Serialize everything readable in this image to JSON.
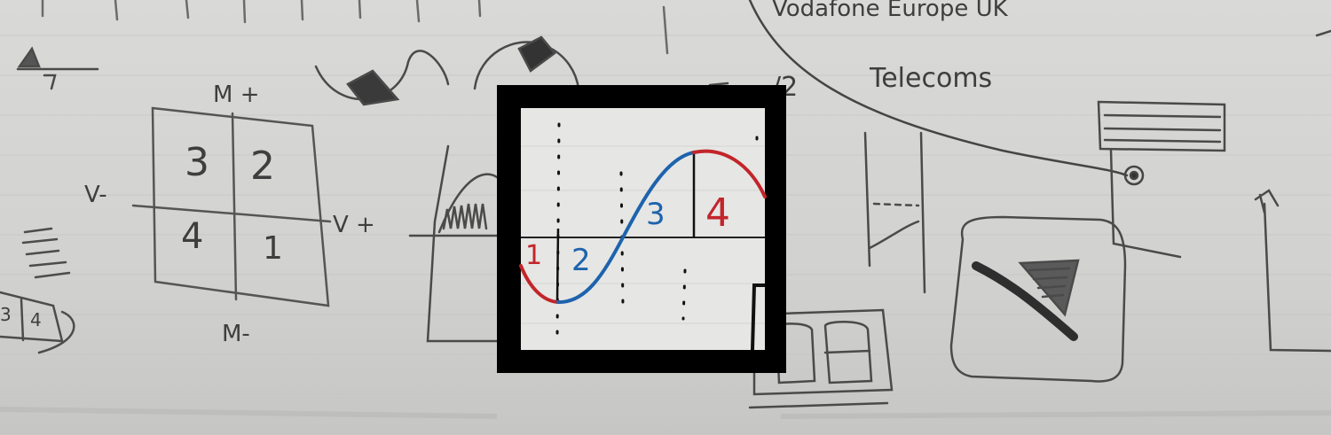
{
  "sketch": {
    "quadrant_top": "M +",
    "quadrant_bottom": "M-",
    "quadrant_left": "V-",
    "quadrant_right": "V +",
    "quadrant_cells": [
      "3",
      "2",
      "4",
      "1"
    ],
    "top_right_text": "Vodafone Europe UK",
    "telecom_text": "Telecoms",
    "fraction_text": "/2"
  },
  "inset": {
    "numbers": [
      "1",
      "2",
      "3",
      "4"
    ],
    "colors": {
      "red": "#c2252a",
      "blue": "#1d63ad",
      "frame": "#000000"
    }
  }
}
